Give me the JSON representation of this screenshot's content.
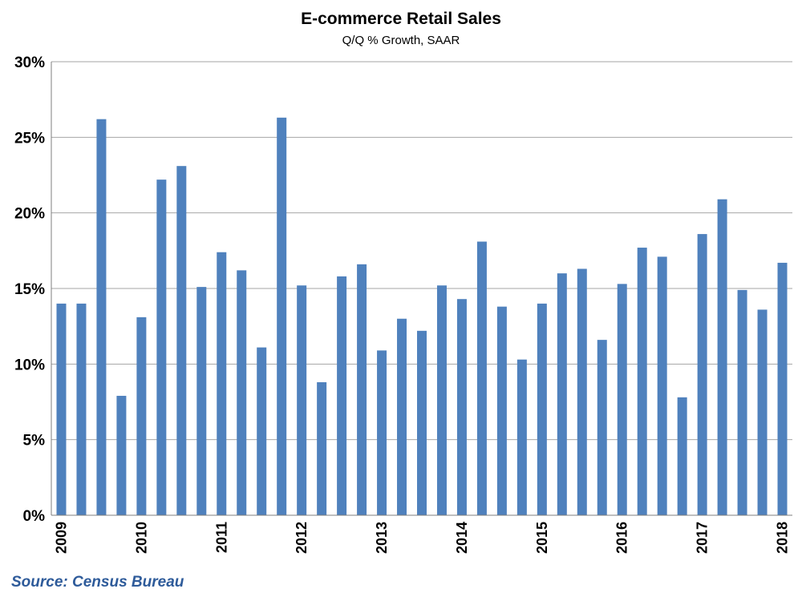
{
  "chart_data": {
    "type": "bar",
    "title": "E-commerce Retail Sales",
    "subtitle": "Q/Q % Growth, SAAR",
    "xlabel": "",
    "ylabel": "",
    "ylim": [
      0,
      30
    ],
    "yticks": [
      0,
      5,
      10,
      15,
      20,
      25,
      30
    ],
    "ytick_labels": [
      "0%",
      "5%",
      "10%",
      "15%",
      "20%",
      "25%",
      "30%"
    ],
    "year_labels": [
      "2009",
      "2010",
      "2011",
      "2012",
      "2013",
      "2014",
      "2015",
      "2016",
      "2017",
      "2018"
    ],
    "year_label_start_index": [
      0,
      4,
      8,
      12,
      16,
      20,
      24,
      28,
      32,
      36
    ],
    "grid": true,
    "bar_color": "#4f81bd",
    "values": [
      14.0,
      14.0,
      26.2,
      7.9,
      13.1,
      22.2,
      23.1,
      15.1,
      17.4,
      16.2,
      11.1,
      26.3,
      15.2,
      8.8,
      15.8,
      16.6,
      10.9,
      13.0,
      12.2,
      15.2,
      14.3,
      18.1,
      13.8,
      10.3,
      14.0,
      16.0,
      16.3,
      11.6,
      15.3,
      17.7,
      17.1,
      7.8,
      18.6,
      20.9,
      14.9,
      13.6,
      16.7
    ]
  },
  "source": "Source: Census Bureau"
}
